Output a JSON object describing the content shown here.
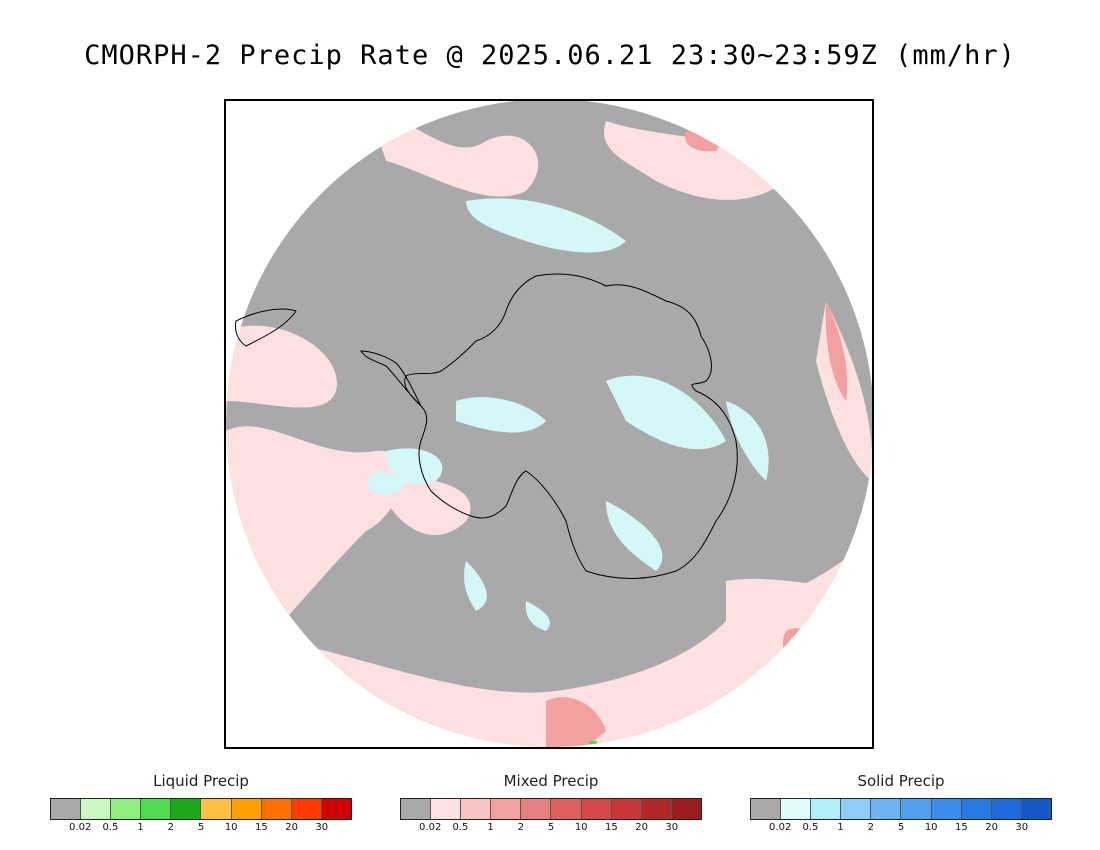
{
  "title": "CMORPH-2 Precip Rate @ 2025.06.21 23:30~23:59Z (mm/hr)",
  "map": {
    "projection": "south-polar-stereographic",
    "background_color": "#a9a9a9",
    "ocean_mixed_color": "#fde0e0",
    "solid_color": "#d4f7f8",
    "coastline_color": "#000000"
  },
  "legends": [
    {
      "key": "liquid",
      "title": "Liquid Precip",
      "colors": [
        "#a9a9a9",
        "#c8f8c0",
        "#8eef7e",
        "#4edc4e",
        "#1ea81e",
        "#ffc040",
        "#ffa000",
        "#ff7000",
        "#ff3c00",
        "#d20000"
      ],
      "ticks": [
        "0.02",
        "0.5",
        "1",
        "2",
        "5",
        "10",
        "15",
        "20",
        "30"
      ]
    },
    {
      "key": "mixed",
      "title": "Mixed Precip",
      "colors": [
        "#a9a9a9",
        "#fde0e0",
        "#f9c4c4",
        "#f2a0a0",
        "#e98080",
        "#de6060",
        "#d44848",
        "#c83838",
        "#b02828",
        "#9a1c1c"
      ],
      "ticks": [
        "0.02",
        "0.5",
        "1",
        "2",
        "5",
        "10",
        "15",
        "20",
        "30"
      ]
    },
    {
      "key": "solid",
      "title": "Solid Precip",
      "colors": [
        "#a9a9a9",
        "#e0fdfe",
        "#b0eef8",
        "#8ecdf6",
        "#6eb4f2",
        "#4fa0ee",
        "#3a8eea",
        "#2a7ae4",
        "#1f68de",
        "#1558c8"
      ],
      "ticks": [
        "0.02",
        "0.5",
        "1",
        "2",
        "5",
        "10",
        "15",
        "20",
        "30"
      ]
    }
  ]
}
